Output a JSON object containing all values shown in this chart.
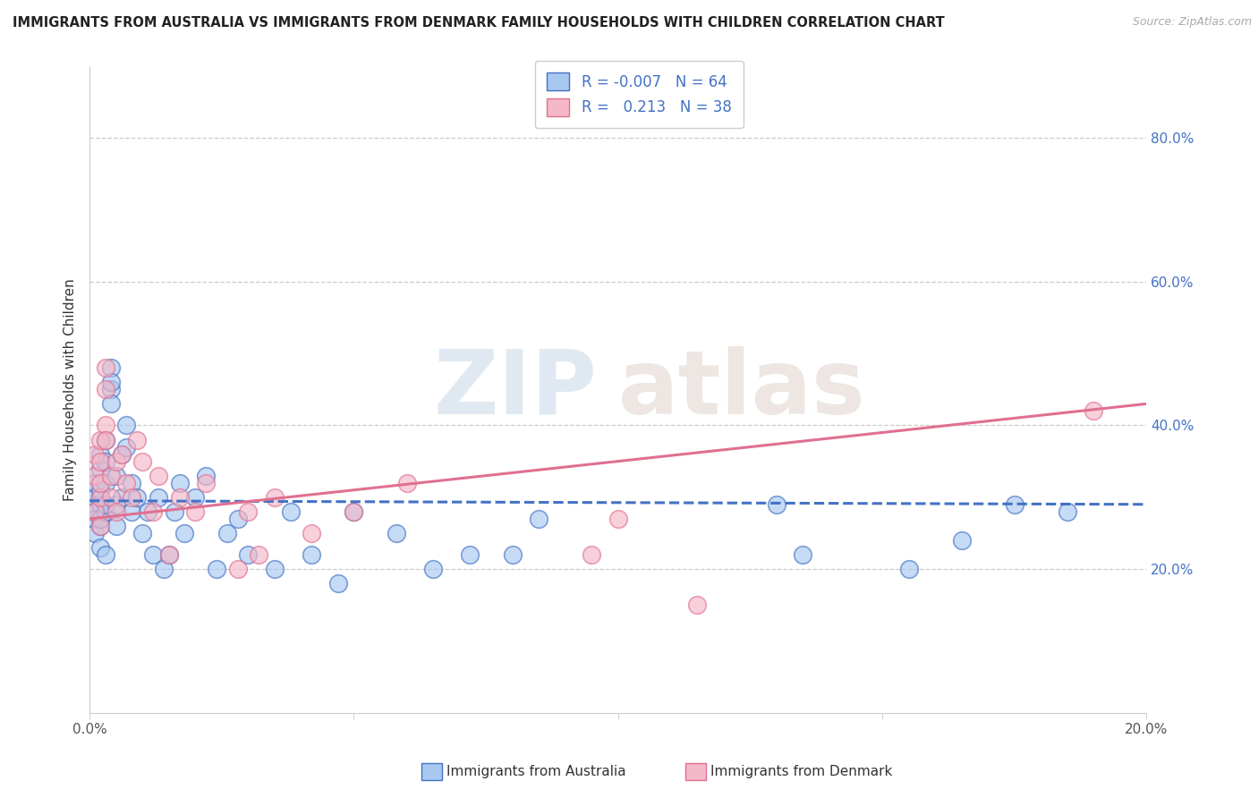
{
  "title": "IMMIGRANTS FROM AUSTRALIA VS IMMIGRANTS FROM DENMARK FAMILY HOUSEHOLDS WITH CHILDREN CORRELATION CHART",
  "source": "Source: ZipAtlas.com",
  "ylabel": "Family Households with Children",
  "r_values": [
    -0.007,
    0.213
  ],
  "n_values": [
    64,
    38
  ],
  "xmin": 0.0,
  "xmax": 0.2,
  "ymin": 0.0,
  "ymax": 0.9,
  "right_yticks": [
    0.2,
    0.4,
    0.6,
    0.8
  ],
  "right_yticklabels": [
    "20.0%",
    "40.0%",
    "60.0%",
    "80.0%"
  ],
  "color_australia": "#a8c8f0",
  "color_denmark": "#f4b8c8",
  "color_line_australia": "#4472c4",
  "color_line_denmark": "#e07090",
  "color_legend_text": "#4472c4",
  "watermark_zip": "ZIP",
  "watermark_atlas": "atlas",
  "aus_line_y0": 0.295,
  "aus_line_y1": 0.29,
  "den_line_y0": 0.27,
  "den_line_y1": 0.43,
  "australia_x": [
    0.001,
    0.001,
    0.001,
    0.001,
    0.001,
    0.002,
    0.002,
    0.002,
    0.002,
    0.002,
    0.002,
    0.002,
    0.002,
    0.003,
    0.003,
    0.003,
    0.003,
    0.003,
    0.003,
    0.004,
    0.004,
    0.004,
    0.004,
    0.005,
    0.005,
    0.005,
    0.006,
    0.006,
    0.007,
    0.007,
    0.008,
    0.008,
    0.009,
    0.01,
    0.011,
    0.012,
    0.013,
    0.014,
    0.015,
    0.016,
    0.017,
    0.018,
    0.02,
    0.022,
    0.024,
    0.026,
    0.028,
    0.03,
    0.035,
    0.038,
    0.042,
    0.047,
    0.05,
    0.058,
    0.065,
    0.072,
    0.08,
    0.085,
    0.13,
    0.135,
    0.155,
    0.165,
    0.175,
    0.185
  ],
  "australia_y": [
    0.28,
    0.3,
    0.32,
    0.25,
    0.27,
    0.3,
    0.26,
    0.29,
    0.27,
    0.31,
    0.34,
    0.36,
    0.23,
    0.38,
    0.35,
    0.28,
    0.32,
    0.22,
    0.29,
    0.45,
    0.48,
    0.43,
    0.46,
    0.33,
    0.29,
    0.26,
    0.36,
    0.3,
    0.4,
    0.37,
    0.28,
    0.32,
    0.3,
    0.25,
    0.28,
    0.22,
    0.3,
    0.2,
    0.22,
    0.28,
    0.32,
    0.25,
    0.3,
    0.33,
    0.2,
    0.25,
    0.27,
    0.22,
    0.2,
    0.28,
    0.22,
    0.18,
    0.28,
    0.25,
    0.2,
    0.22,
    0.22,
    0.27,
    0.29,
    0.22,
    0.2,
    0.24,
    0.29,
    0.28
  ],
  "denmark_x": [
    0.001,
    0.001,
    0.001,
    0.002,
    0.002,
    0.002,
    0.002,
    0.002,
    0.003,
    0.003,
    0.003,
    0.003,
    0.004,
    0.004,
    0.005,
    0.005,
    0.006,
    0.007,
    0.008,
    0.009,
    0.01,
    0.012,
    0.013,
    0.015,
    0.017,
    0.02,
    0.022,
    0.028,
    0.03,
    0.032,
    0.035,
    0.042,
    0.05,
    0.06,
    0.095,
    0.1,
    0.115,
    0.19
  ],
  "denmark_y": [
    0.28,
    0.33,
    0.36,
    0.3,
    0.38,
    0.35,
    0.32,
    0.26,
    0.4,
    0.45,
    0.48,
    0.38,
    0.33,
    0.3,
    0.35,
    0.28,
    0.36,
    0.32,
    0.3,
    0.38,
    0.35,
    0.28,
    0.33,
    0.22,
    0.3,
    0.28,
    0.32,
    0.2,
    0.28,
    0.22,
    0.3,
    0.25,
    0.28,
    0.32,
    0.22,
    0.27,
    0.15,
    0.42
  ]
}
